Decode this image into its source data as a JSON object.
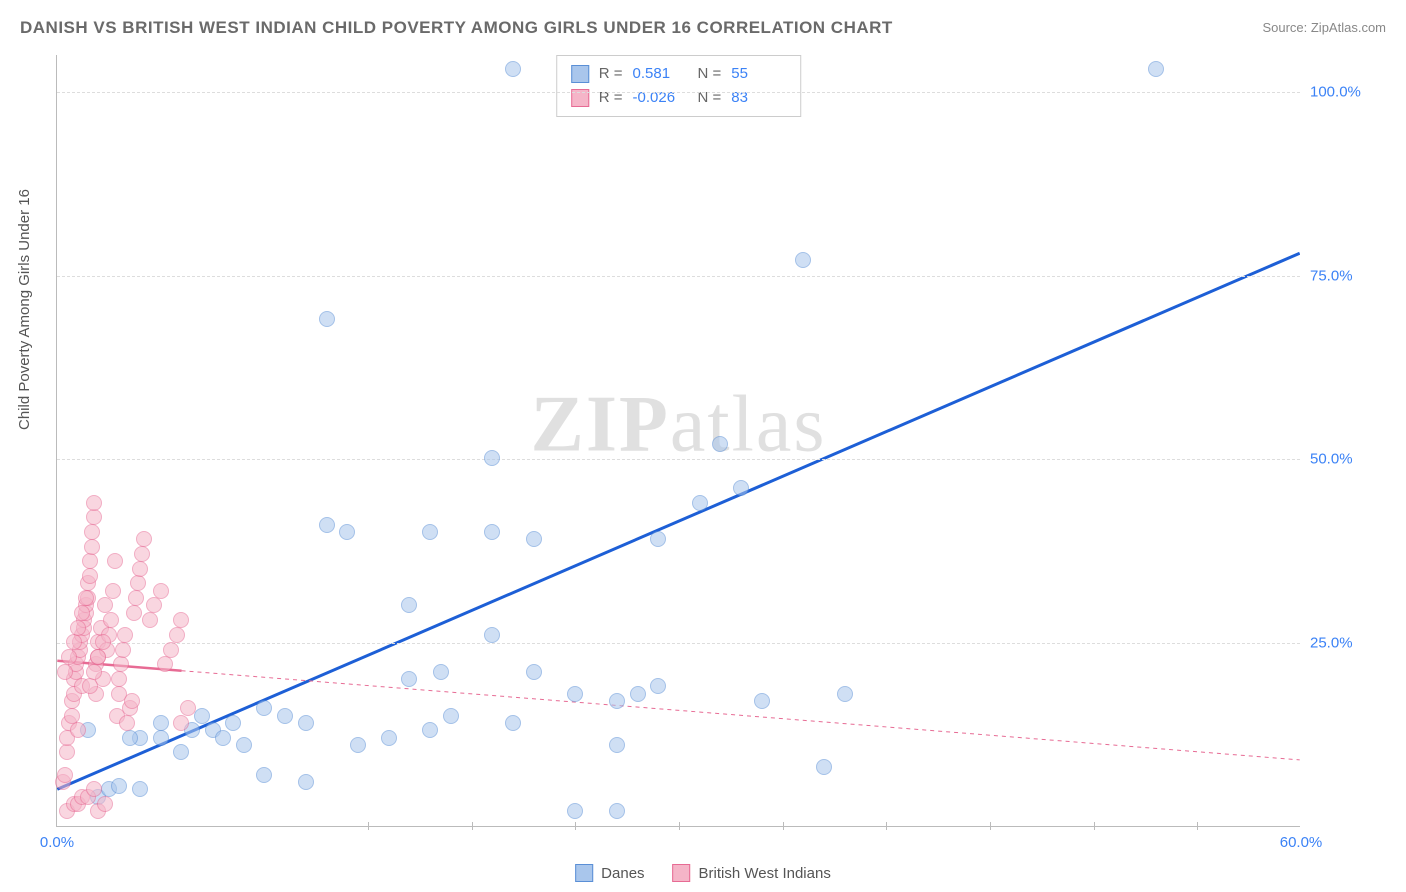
{
  "title": "DANISH VS BRITISH WEST INDIAN CHILD POVERTY AMONG GIRLS UNDER 16 CORRELATION CHART",
  "source": "Source: ZipAtlas.com",
  "ylabel": "Child Poverty Among Girls Under 16",
  "watermark": "ZIPatlas",
  "chart": {
    "type": "scatter",
    "xlim": [
      0,
      60
    ],
    "ylim": [
      0,
      105
    ],
    "xtick_positions": [
      0,
      60
    ],
    "xtick_labels": [
      "0.0%",
      "60.0%"
    ],
    "ytick_positions": [
      25,
      50,
      75,
      100
    ],
    "ytick_labels": [
      "25.0%",
      "50.0%",
      "75.0%",
      "100.0%"
    ],
    "ytick_color": "#3b82f6",
    "xtick_color": "#3b82f6",
    "grid_color": "#dddddd",
    "background_color": "#ffffff",
    "marker_radius": 8,
    "marker_border_width": 1,
    "series": [
      {
        "name": "Danes",
        "fill": "#a9c6ec",
        "stroke": "#5a8fd6",
        "fill_opacity": 0.55,
        "R": "0.581",
        "N": "55",
        "trend": {
          "x1": 0,
          "y1": 5,
          "x2": 60,
          "y2": 78,
          "color": "#1d5fd6",
          "width": 3,
          "dash": "none"
        },
        "points": [
          [
            2,
            4
          ],
          [
            2.5,
            5
          ],
          [
            3,
            5.5
          ],
          [
            4,
            12
          ],
          [
            4,
            5
          ],
          [
            5,
            12
          ],
          [
            5,
            14
          ],
          [
            6,
            10
          ],
          [
            6.5,
            13
          ],
          [
            7,
            15
          ],
          [
            7.5,
            13
          ],
          [
            8,
            12
          ],
          [
            9,
            11
          ],
          [
            10,
            16
          ],
          [
            10,
            7
          ],
          [
            11,
            15
          ],
          [
            12,
            14
          ],
          [
            12,
            6
          ],
          [
            13,
            41
          ],
          [
            13,
            69
          ],
          [
            14,
            40
          ],
          [
            16,
            12
          ],
          [
            17,
            20
          ],
          [
            17,
            30
          ],
          [
            18,
            40
          ],
          [
            18,
            13
          ],
          [
            19,
            15
          ],
          [
            21,
            26
          ],
          [
            21,
            40
          ],
          [
            21,
            50
          ],
          [
            22,
            14
          ],
          [
            22,
            103
          ],
          [
            23,
            21
          ],
          [
            23,
            39
          ],
          [
            25,
            18
          ],
          [
            25,
            2
          ],
          [
            27,
            11
          ],
          [
            27,
            17
          ],
          [
            27,
            2
          ],
          [
            28,
            18
          ],
          [
            29,
            19
          ],
          [
            29,
            39
          ],
          [
            31,
            44
          ],
          [
            32,
            52
          ],
          [
            33,
            46
          ],
          [
            34,
            17
          ],
          [
            36,
            77
          ],
          [
            37,
            8
          ],
          [
            38,
            18
          ],
          [
            53,
            103
          ],
          [
            1.5,
            13
          ],
          [
            3.5,
            12
          ],
          [
            8.5,
            14
          ],
          [
            14.5,
            11
          ],
          [
            18.5,
            21
          ]
        ]
      },
      {
        "name": "British West Indians",
        "fill": "#f5b5c8",
        "stroke": "#e76b94",
        "fill_opacity": 0.55,
        "R": "-0.026",
        "N": "83",
        "trend": {
          "x1": 0,
          "y1": 22.5,
          "x2": 60,
          "y2": 9,
          "color": "#e76b94",
          "width": 1,
          "dash": "4,4",
          "solid_until": 6
        },
        "points": [
          [
            0.3,
            6
          ],
          [
            0.4,
            7
          ],
          [
            0.5,
            10
          ],
          [
            0.5,
            12
          ],
          [
            0.6,
            14
          ],
          [
            0.7,
            15
          ],
          [
            0.7,
            17
          ],
          [
            0.8,
            18
          ],
          [
            0.8,
            20
          ],
          [
            0.9,
            21
          ],
          [
            0.9,
            22
          ],
          [
            1.0,
            13
          ],
          [
            1.0,
            23
          ],
          [
            1.1,
            24
          ],
          [
            1.1,
            25
          ],
          [
            1.2,
            19
          ],
          [
            1.2,
            26
          ],
          [
            1.3,
            27
          ],
          [
            1.3,
            28
          ],
          [
            1.4,
            29
          ],
          [
            1.4,
            30
          ],
          [
            1.5,
            31
          ],
          [
            1.5,
            33
          ],
          [
            1.6,
            34
          ],
          [
            1.6,
            36
          ],
          [
            1.7,
            38
          ],
          [
            1.7,
            40
          ],
          [
            1.8,
            42
          ],
          [
            1.8,
            44
          ],
          [
            1.9,
            18
          ],
          [
            1.9,
            22
          ],
          [
            2.0,
            23
          ],
          [
            2.0,
            25
          ],
          [
            2.1,
            27
          ],
          [
            2.2,
            20
          ],
          [
            2.3,
            30
          ],
          [
            2.4,
            24
          ],
          [
            2.5,
            26
          ],
          [
            2.6,
            28
          ],
          [
            2.7,
            32
          ],
          [
            2.8,
            36
          ],
          [
            2.9,
            15
          ],
          [
            3.0,
            18
          ],
          [
            3.0,
            20
          ],
          [
            3.1,
            22
          ],
          [
            3.2,
            24
          ],
          [
            3.3,
            26
          ],
          [
            3.4,
            14
          ],
          [
            3.5,
            16
          ],
          [
            3.6,
            17
          ],
          [
            3.7,
            29
          ],
          [
            3.8,
            31
          ],
          [
            3.9,
            33
          ],
          [
            4.0,
            35
          ],
          [
            4.1,
            37
          ],
          [
            4.2,
            39
          ],
          [
            4.5,
            28
          ],
          [
            4.7,
            30
          ],
          [
            5.0,
            32
          ],
          [
            5.2,
            22
          ],
          [
            5.5,
            24
          ],
          [
            5.8,
            26
          ],
          [
            6.0,
            14
          ],
          [
            6.0,
            28
          ],
          [
            6.3,
            16
          ],
          [
            0.5,
            2
          ],
          [
            0.8,
            3
          ],
          [
            1.0,
            3
          ],
          [
            1.2,
            4
          ],
          [
            1.5,
            4
          ],
          [
            1.8,
            5
          ],
          [
            2.0,
            2
          ],
          [
            2.3,
            3
          ],
          [
            0.4,
            21
          ],
          [
            0.6,
            23
          ],
          [
            0.8,
            25
          ],
          [
            1.0,
            27
          ],
          [
            1.2,
            29
          ],
          [
            1.4,
            31
          ],
          [
            1.6,
            19
          ],
          [
            1.8,
            21
          ],
          [
            2.0,
            23
          ],
          [
            2.2,
            25
          ]
        ]
      }
    ]
  },
  "legend": {
    "items": [
      {
        "label": "Danes",
        "fill": "#a9c6ec",
        "stroke": "#5a8fd6"
      },
      {
        "label": "British West Indians",
        "fill": "#f5b5c8",
        "stroke": "#e76b94"
      }
    ]
  },
  "stats_label_R": "R =",
  "stats_label_N": "N =",
  "stats_value_color": "#3b82f6"
}
